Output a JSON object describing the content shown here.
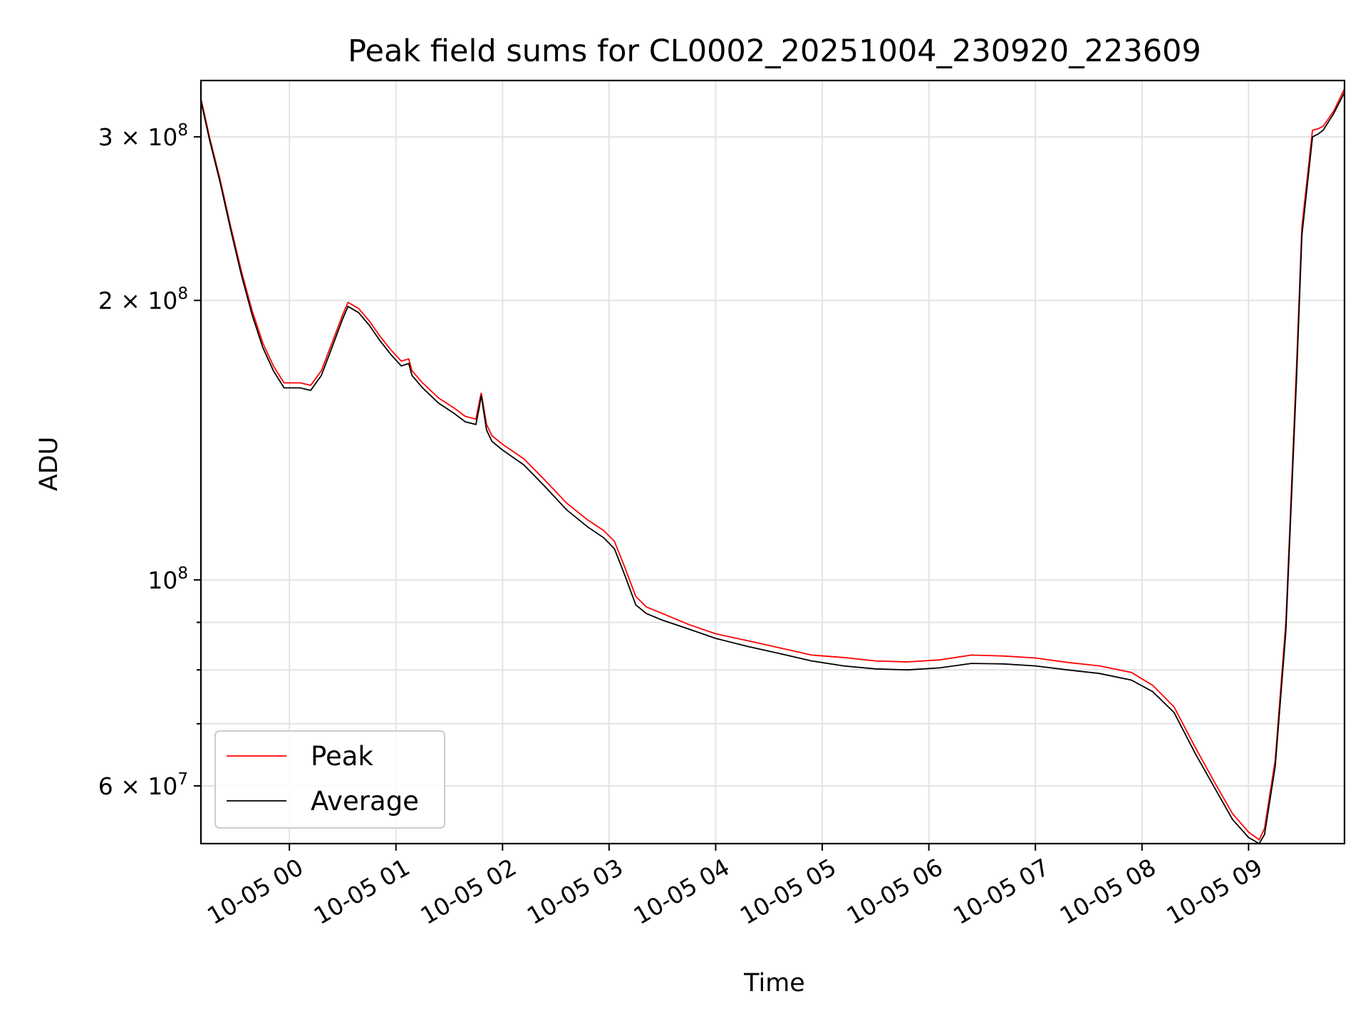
{
  "chart_data": {
    "type": "line",
    "title": "Peak field sums for CL0002_20251004_230920_223609",
    "xlabel": "Time",
    "ylabel": "ADU",
    "yscale": "log",
    "ylim": [
      52000000,
      345000000
    ],
    "xlim": [
      -0.83,
      9.9
    ],
    "grid": true,
    "legend_position": "lower-left",
    "x_unit": "hours since 10-05 00:00",
    "xticks": [
      {
        "value": 0,
        "label": "10-05 00"
      },
      {
        "value": 1,
        "label": "10-05 01"
      },
      {
        "value": 2,
        "label": "10-05 02"
      },
      {
        "value": 3,
        "label": "10-05 03"
      },
      {
        "value": 4,
        "label": "10-05 04"
      },
      {
        "value": 5,
        "label": "10-05 05"
      },
      {
        "value": 6,
        "label": "10-05 06"
      },
      {
        "value": 7,
        "label": "10-05 07"
      },
      {
        "value": 8,
        "label": "10-05 08"
      },
      {
        "value": 9,
        "label": "10-05 09"
      }
    ],
    "yticks_major": [
      {
        "value": 300000000,
        "mantissa": "3",
        "exponent": "8"
      },
      {
        "value": 200000000,
        "mantissa": "2",
        "exponent": "8"
      },
      {
        "value": 100000000,
        "mantissa": "",
        "exponent": "8"
      },
      {
        "value": 60000000,
        "mantissa": "6",
        "exponent": "7"
      }
    ],
    "yticks_minor": [
      90000000,
      80000000,
      70000000
    ],
    "series": [
      {
        "name": "Peak",
        "color": "#ff0000",
        "x": [
          -0.83,
          -0.75,
          -0.65,
          -0.55,
          -0.45,
          -0.35,
          -0.25,
          -0.15,
          -0.05,
          0.0,
          0.1,
          0.2,
          0.3,
          0.4,
          0.5,
          0.55,
          0.65,
          0.75,
          0.85,
          0.95,
          1.05,
          1.12,
          1.15,
          1.25,
          1.4,
          1.55,
          1.65,
          1.75,
          1.78,
          1.8,
          1.85,
          1.9,
          2.0,
          2.2,
          2.4,
          2.6,
          2.8,
          2.95,
          3.05,
          3.15,
          3.25,
          3.35,
          3.5,
          3.75,
          4.0,
          4.3,
          4.6,
          4.9,
          5.2,
          5.5,
          5.8,
          6.1,
          6.4,
          6.7,
          7.0,
          7.3,
          7.6,
          7.9,
          8.1,
          8.3,
          8.5,
          8.7,
          8.85,
          9.0,
          9.1,
          9.15,
          9.25,
          9.35,
          9.45,
          9.5,
          9.6,
          9.65,
          9.7,
          9.8,
          9.9
        ],
        "y": [
          330000000,
          300000000,
          270000000,
          240000000,
          215000000,
          195000000,
          180000000,
          170000000,
          163000000,
          163000000,
          163000000,
          162000000,
          168000000,
          180000000,
          193000000,
          199000000,
          196000000,
          190000000,
          183000000,
          177000000,
          172000000,
          173000000,
          168000000,
          163000000,
          157000000,
          153000000,
          150000000,
          149000000,
          155000000,
          159000000,
          147000000,
          143000000,
          140000000,
          135000000,
          128000000,
          121000000,
          116000000,
          113000000,
          110000000,
          103000000,
          96000000,
          93500000,
          92000000,
          89500000,
          87500000,
          86000000,
          84500000,
          83000000,
          82500000,
          81800000,
          81600000,
          82000000,
          83000000,
          82800000,
          82400000,
          81500000,
          80800000,
          79500000,
          77000000,
          73000000,
          66000000,
          60000000,
          56000000,
          53500000,
          52500000,
          54000000,
          64000000,
          90000000,
          170000000,
          240000000,
          305000000,
          306000000,
          308000000,
          320000000,
          338000000
        ]
      },
      {
        "name": "Average",
        "color": "#000000",
        "x": [
          -0.83,
          -0.75,
          -0.65,
          -0.55,
          -0.45,
          -0.35,
          -0.25,
          -0.15,
          -0.05,
          0.0,
          0.1,
          0.2,
          0.3,
          0.4,
          0.5,
          0.55,
          0.65,
          0.75,
          0.85,
          0.95,
          1.05,
          1.12,
          1.15,
          1.25,
          1.4,
          1.55,
          1.65,
          1.75,
          1.78,
          1.8,
          1.85,
          1.9,
          2.0,
          2.2,
          2.4,
          2.6,
          2.8,
          2.95,
          3.05,
          3.15,
          3.25,
          3.35,
          3.5,
          3.75,
          4.0,
          4.3,
          4.6,
          4.9,
          5.2,
          5.5,
          5.8,
          6.1,
          6.4,
          6.7,
          7.0,
          7.3,
          7.6,
          7.9,
          8.1,
          8.3,
          8.5,
          8.7,
          8.85,
          9.0,
          9.1,
          9.15,
          9.25,
          9.35,
          9.45,
          9.5,
          9.6,
          9.65,
          9.7,
          9.8,
          9.9
        ],
        "y": [
          328000000,
          298000000,
          268000000,
          238000000,
          213000000,
          193000000,
          178000000,
          168000000,
          161000000,
          161000000,
          161000000,
          160000000,
          166000000,
          178000000,
          191000000,
          197000000,
          194000000,
          188000000,
          181000000,
          175000000,
          170000000,
          171000000,
          166000000,
          161000000,
          155000000,
          151000000,
          148000000,
          147000000,
          153000000,
          158000000,
          145000000,
          141000000,
          138000000,
          133000000,
          126000000,
          119000000,
          114000000,
          111000000,
          108000000,
          101000000,
          94000000,
          92000000,
          90500000,
          88500000,
          86500000,
          84800000,
          83300000,
          81800000,
          80800000,
          80200000,
          80000000,
          80400000,
          81300000,
          81200000,
          80800000,
          80000000,
          79300000,
          78000000,
          75800000,
          72000000,
          65000000,
          59200000,
          55200000,
          52800000,
          52000000,
          53200000,
          63000000,
          88000000,
          165000000,
          235000000,
          300000000,
          302000000,
          305000000,
          318000000,
          335000000
        ]
      }
    ]
  }
}
